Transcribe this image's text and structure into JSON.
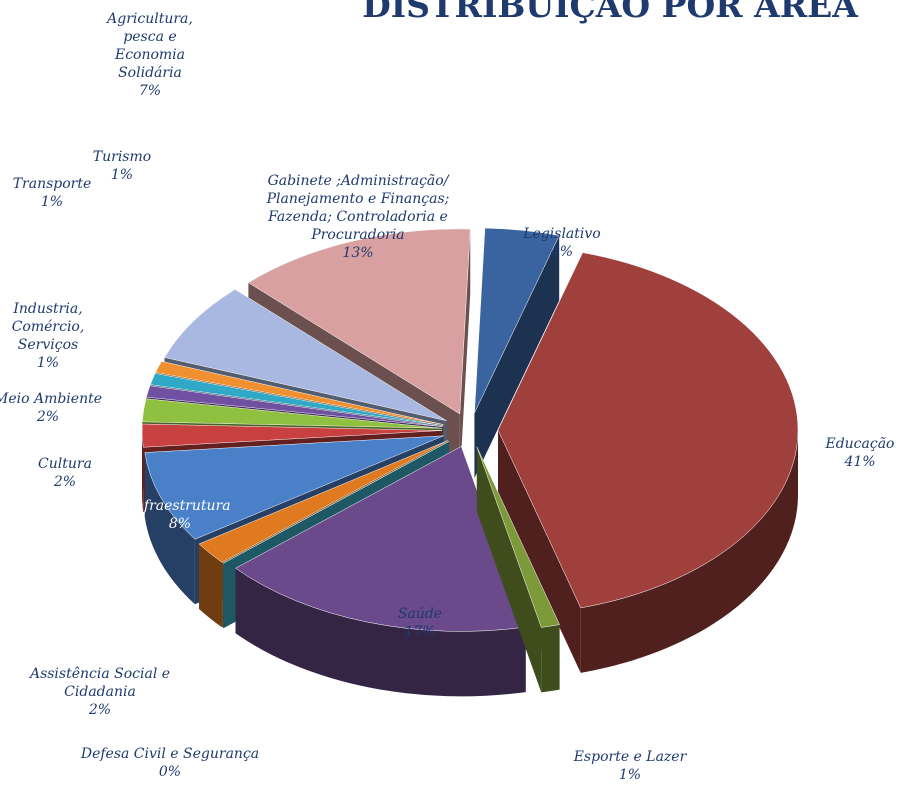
{
  "chart_data": {
    "type": "pie",
    "title": "DISTRIBUIÇÃO POR ÁREA",
    "categories": [
      "Legislativo",
      "Educação",
      "Esporte e Lazer",
      "Saúde",
      "Defesa Civil e Segurança",
      "Assistência Social e Cidadania",
      "Infraestrutura",
      "Cultura",
      "Meio Ambiente",
      "Industria, Comércio, Serviços",
      "Transporte",
      "Turismo",
      "Agricultura, pesca e Economia Solidária",
      "Gabinete ;Administração/ Planejamento e Finanças; Fazenda; Controladoria e Procuradoria"
    ],
    "values": [
      4,
      41,
      1,
      17,
      0,
      2,
      8,
      2,
      2,
      1,
      1,
      1,
      7,
      13
    ],
    "value_labels": [
      "4%",
      "41%",
      "1%",
      "17%",
      "0%",
      "2%",
      "8%",
      "2%",
      "2%",
      "1%",
      "1%",
      "1%",
      "7%",
      "13%"
    ],
    "colors": [
      "#3a64a0",
      "#a0403c",
      "#7d9a3a",
      "#6a4a8a",
      "#3ab0c8",
      "#e07a20",
      "#4a80c8",
      "#c84040",
      "#90c040",
      "#7050a0",
      "#30a8c8",
      "#f09030",
      "#a8b8e0",
      "#d8a0a0"
    ]
  }
}
